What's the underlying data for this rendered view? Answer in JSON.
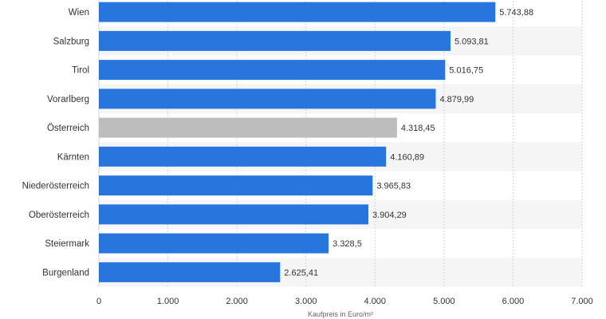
{
  "chart_data": {
    "type": "bar",
    "orientation": "horizontal",
    "categories": [
      "Wien",
      "Salzburg",
      "Tirol",
      "Vorarlberg",
      "Österreich",
      "Kärnten",
      "Niederösterreich",
      "Oberösterreich",
      "Steiermark",
      "Burgenland"
    ],
    "values": [
      5743.88,
      5093.81,
      5016.75,
      4879.99,
      4318.45,
      4160.89,
      3965.83,
      3904.29,
      3328.5,
      2625.41
    ],
    "value_labels": [
      "5.743,88",
      "5.093,81",
      "5.016,75",
      "4.879,99",
      "4.318,45",
      "4.160,89",
      "3.965,83",
      "3.904,29",
      "3.328,5",
      "2.625,41"
    ],
    "xlim": [
      0,
      7000
    ],
    "ticks": [
      0,
      1000,
      2000,
      3000,
      4000,
      5000,
      6000,
      7000
    ],
    "tick_labels": [
      "0",
      "1.000",
      "2.000",
      "3.000",
      "4.000",
      "5.000",
      "6.000",
      "7.000"
    ],
    "xlabel": "Kaufpreis in Euro/m²",
    "ylabel": "",
    "title": "",
    "grid": true,
    "colors": {
      "bar": "#2876dd",
      "highlight": "#bdbdbd"
    },
    "highlight_category": "Österreich"
  }
}
